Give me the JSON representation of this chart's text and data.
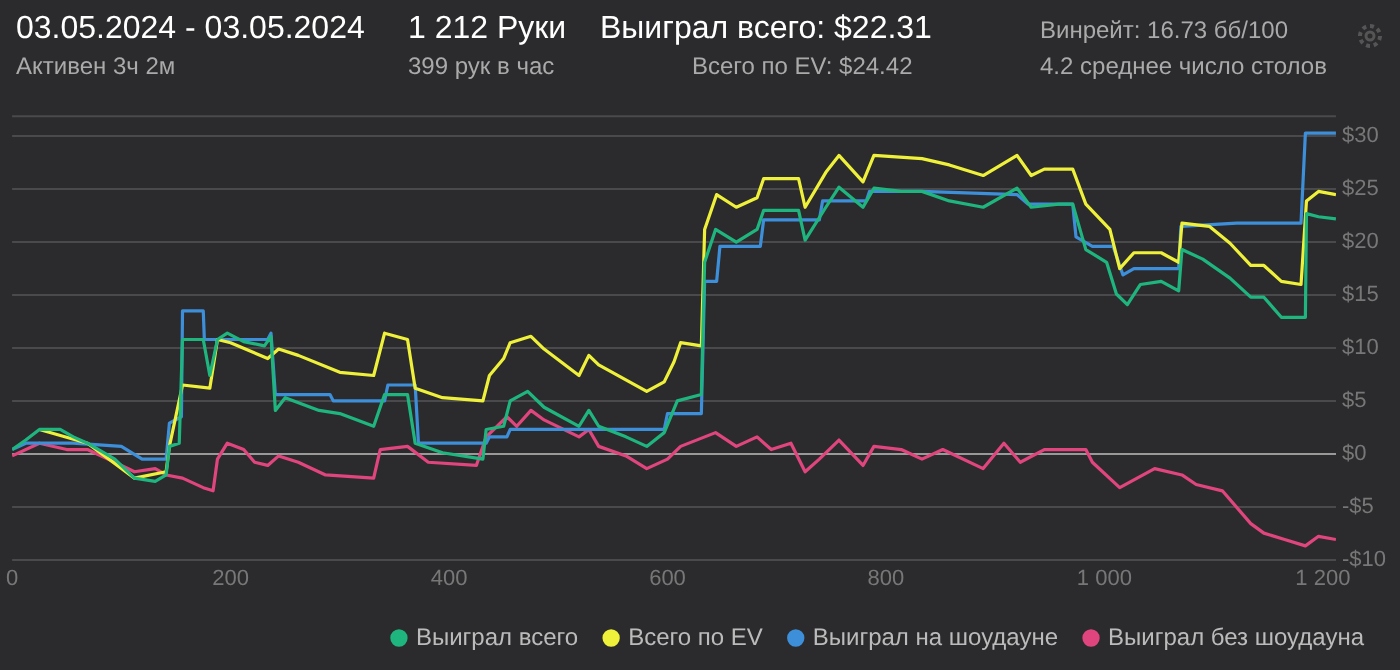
{
  "chart_data": {
    "type": "line",
    "title": "03.05.2024 - 03.05.2024",
    "subtitle": "Активен 3ч 2м",
    "annotations": [
      "1 212 Руки",
      "399 рук в час",
      "Выиграл всего: $22.31",
      "Всего по EV: $24.42",
      "Винрейт: 16.73 бб/100",
      "4.2 среднее число столов"
    ],
    "xlim": [
      0,
      1212
    ],
    "xticks": [
      0,
      200,
      400,
      600,
      800,
      {
        "value": 1000,
        "label": "1 000"
      },
      {
        "value": 1200,
        "label": "1 200"
      }
    ],
    "ylim": [
      -10,
      32
    ],
    "yticks": [
      {
        "value": -10,
        "label": "-$10"
      },
      {
        "value": -5,
        "label": "-$5"
      },
      {
        "value": 0,
        "label": "$0"
      },
      {
        "value": 5,
        "label": "$5"
      },
      {
        "value": 10,
        "label": "$10"
      },
      {
        "value": 15,
        "label": "$15"
      },
      {
        "value": 20,
        "label": "$20"
      },
      {
        "value": 25,
        "label": "$25"
      },
      {
        "value": 30,
        "label": "$30"
      }
    ],
    "grid": "y",
    "legend": "bottom",
    "marker": "none",
    "line_style": "solid",
    "series": [
      {
        "name": "Выиграл всего",
        "color": "#1fb57f",
        "x": [
          0,
          12.5,
          25,
          44,
          56,
          69,
          94,
          112,
          131,
          141,
          144,
          153,
          156,
          175,
          181,
          188,
          197,
          212,
          231,
          237,
          241,
          250,
          281,
          300,
          331,
          341,
          362,
          369,
          394,
          431,
          434,
          450,
          456,
          472,
          487,
          519,
          528,
          537,
          562,
          581,
          597,
          609,
          631,
          634,
          644,
          663,
          682,
          688,
          720,
          726,
          745,
          757,
          779,
          789,
          814,
          833,
          858,
          889,
          920,
          933,
          958,
          971,
          983,
          1002,
          1011,
          1021,
          1033,
          1052,
          1068,
          1071,
          1090,
          1115,
          1134,
          1146,
          1162,
          1184,
          1185,
          1196,
          1212
        ],
        "values": [
          0.4,
          1.3,
          2.3,
          2.3,
          1.6,
          1,
          -0.5,
          -2.3,
          -2.6,
          -2,
          0.7,
          1,
          10.8,
          10.8,
          7.4,
          10.8,
          11.4,
          10.6,
          10.2,
          11.1,
          4.1,
          5.3,
          4.1,
          3.8,
          2.6,
          5.6,
          5.6,
          1,
          0.1,
          -0.5,
          2.3,
          2.6,
          5,
          5.9,
          4.4,
          2.6,
          4.1,
          2.6,
          1.6,
          0.7,
          2,
          5,
          5.6,
          18.1,
          21.2,
          20,
          21.2,
          23,
          23,
          20.2,
          23.3,
          25.2,
          23.3,
          25.1,
          24.8,
          24.8,
          23.9,
          23.3,
          25.1,
          23.3,
          23.6,
          23.6,
          19.3,
          18.1,
          15.1,
          14.1,
          16,
          16.3,
          15.4,
          19.3,
          18.4,
          16.6,
          14.8,
          14.8,
          12.9,
          12.9,
          22.7,
          22.4,
          22.2
        ]
      },
      {
        "name": "Всего по EV",
        "color": "#eef03a",
        "x": [
          25,
          69,
          112,
          141,
          144,
          156,
          181,
          188,
          200,
          234,
          244,
          262,
          300,
          331,
          341,
          362,
          369,
          394,
          431,
          437,
          450,
          456,
          475,
          487,
          519,
          528,
          537,
          581,
          597,
          606,
          612,
          631,
          634,
          645,
          663,
          682,
          688,
          720,
          726,
          745,
          757,
          779,
          789,
          833,
          858,
          889,
          920,
          933,
          945,
          971,
          983,
          1005,
          1014,
          1027,
          1052,
          1068,
          1071,
          1096,
          1115,
          1134,
          1146,
          1162,
          1180,
          1185,
          1196,
          1212
        ],
        "values": [
          2.3,
          1,
          -2.3,
          -1.7,
          0.7,
          6.5,
          6.2,
          10.8,
          10.5,
          9,
          9.9,
          9.3,
          7.7,
          7.4,
          11.4,
          10.8,
          6.2,
          5.3,
          5,
          7.4,
          9,
          10.5,
          11.1,
          9.9,
          7.4,
          9.3,
          8.4,
          5.9,
          6.8,
          8.7,
          10.5,
          10.2,
          21.2,
          24.5,
          23.3,
          24.2,
          26,
          26,
          23.3,
          26.6,
          28.2,
          25.7,
          28.2,
          27.9,
          27.3,
          26.3,
          28.2,
          26.3,
          26.9,
          26.9,
          23.6,
          21.2,
          17.5,
          19,
          19,
          18.1,
          21.8,
          21.5,
          19.9,
          17.8,
          17.8,
          16.3,
          16,
          23.9,
          24.8,
          24.5
        ]
      },
      {
        "name": "Выиграл на шоудауне",
        "color": "#3d8fd9",
        "x": [
          0,
          12.5,
          56,
          100,
          119,
          141,
          144,
          155,
          156,
          175,
          176,
          234,
          237,
          241,
          291,
          294,
          341,
          344,
          369,
          372,
          434,
          437,
          453,
          456,
          597,
          600,
          631,
          634,
          645,
          648,
          685,
          688,
          739,
          742,
          782,
          785,
          833,
          920,
          930,
          971,
          974,
          989,
          1008,
          1017,
          1027,
          1068,
          1070,
          1121,
          1180,
          1184,
          1212
        ],
        "values": [
          0.4,
          1,
          1,
          0.7,
          -0.5,
          -0.5,
          2.9,
          3.5,
          13.5,
          13.5,
          10.8,
          10.8,
          11.4,
          5.6,
          5.6,
          5,
          5,
          6.5,
          6.5,
          1,
          1,
          1.6,
          1.6,
          2.3,
          2.3,
          3.8,
          3.8,
          16.3,
          16.3,
          19.6,
          19.6,
          22.1,
          22.1,
          23.9,
          23.9,
          24.8,
          24.8,
          24.5,
          23.6,
          23.6,
          20.5,
          19.6,
          19.6,
          16.9,
          17.5,
          17.5,
          21.5,
          21.8,
          21.8,
          30.3,
          30.3
        ]
      },
      {
        "name": "Выиграл без шоудауна",
        "color": "#e0457d",
        "x": [
          0,
          25,
          50,
          69,
          94,
          112,
          131,
          141,
          156,
          175,
          184,
          188,
          197,
          212,
          222,
          234,
          244,
          262,
          287,
          331,
          337,
          362,
          381,
          425,
          434,
          453,
          462,
          475,
          487,
          519,
          528,
          537,
          562,
          581,
          600,
          612,
          644,
          663,
          682,
          695,
          713,
          726,
          739,
          757,
          779,
          789,
          814,
          833,
          852,
          889,
          908,
          923,
          945,
          983,
          989,
          1014,
          1046,
          1071,
          1084,
          1108,
          1134,
          1146,
          1165,
          1184,
          1196,
          1212
        ],
        "values": [
          -0.2,
          1,
          0.4,
          0.4,
          -0.8,
          -1.7,
          -1.4,
          -2,
          -2.3,
          -3.2,
          -3.5,
          -0.5,
          1,
          0.4,
          -0.8,
          -1.1,
          -0.2,
          -0.8,
          -2,
          -2.3,
          0.4,
          0.7,
          -0.8,
          -1.1,
          1.6,
          3.5,
          2.6,
          4.1,
          3.2,
          1.6,
          2.3,
          0.7,
          -0.2,
          -1.4,
          -0.5,
          0.7,
          2,
          0.7,
          1.6,
          0.4,
          1,
          -1.7,
          -0.5,
          1.3,
          -1.1,
          0.7,
          0.4,
          -0.5,
          0.4,
          -1.4,
          1,
          -0.8,
          0.4,
          0.4,
          -0.8,
          -3.2,
          -1.4,
          -2,
          -2.9,
          -3.5,
          -6.6,
          -7.5,
          -8.1,
          -8.7,
          -7.8,
          -8.1
        ]
      }
    ]
  }
}
